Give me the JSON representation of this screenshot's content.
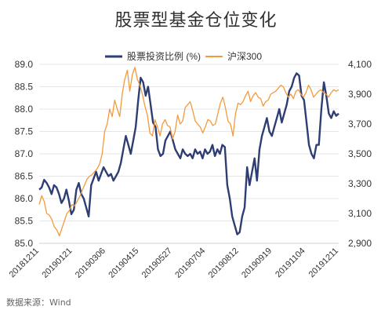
{
  "chart_data": {
    "type": "line",
    "title": "股票型基金仓位变化",
    "source": "数据来源：Wind",
    "x_ticks": [
      "20181211",
      "20190121",
      "20190306",
      "20190415",
      "20190527",
      "20190704",
      "20190812",
      "20190919",
      "20191104",
      "20191211"
    ],
    "y_left": {
      "min": 85.0,
      "max": 89.0,
      "ticks": [
        "85.0",
        "85.5",
        "86.0",
        "86.5",
        "87.0",
        "87.5",
        "88.0",
        "88.5",
        "89.0"
      ]
    },
    "y_right": {
      "min": 2900,
      "max": 4100,
      "ticks": [
        "2,900",
        "3,100",
        "3,300",
        "3,500",
        "3,700",
        "3,900",
        "4,100"
      ]
    },
    "series": [
      {
        "name": "股票投资比例 (%)",
        "axis": "left",
        "color": "#2e3e73",
        "values": [
          86.2,
          86.25,
          86.42,
          86.35,
          86.25,
          86.1,
          86.3,
          86.25,
          86.1,
          85.9,
          86.0,
          86.2,
          85.95,
          85.65,
          85.75,
          86.2,
          86.35,
          86.1,
          86.0,
          85.8,
          85.6,
          86.3,
          86.45,
          86.6,
          86.4,
          86.55,
          86.7,
          86.6,
          86.5,
          86.55,
          86.4,
          86.5,
          86.6,
          86.8,
          87.1,
          87.4,
          87.2,
          87.0,
          87.3,
          87.6,
          88.2,
          88.7,
          88.6,
          88.3,
          88.5,
          88.1,
          87.7,
          87.6,
          87.1,
          86.95,
          87.0,
          87.3,
          87.4,
          87.5,
          87.3,
          87.1,
          87.0,
          86.9,
          87.1,
          87.0,
          86.95,
          87.0,
          86.9,
          87.1,
          87.0,
          87.05,
          86.9,
          87.1,
          87.0,
          87.05,
          87.2,
          86.95,
          87.1,
          87.0,
          87.2,
          87.15,
          86.3,
          86.0,
          85.6,
          85.4,
          85.2,
          85.25,
          85.6,
          85.8,
          86.7,
          86.3,
          86.6,
          86.9,
          86.4,
          87.1,
          87.4,
          87.6,
          87.8,
          87.5,
          87.4,
          87.6,
          87.8,
          88.0,
          87.7,
          87.9,
          88.1,
          88.4,
          88.5,
          88.7,
          88.8,
          88.75,
          88.3,
          88.2,
          87.7,
          87.2,
          87.0,
          86.9,
          87.2,
          87.2,
          88.0,
          88.6,
          88.3,
          87.9,
          87.8,
          87.95,
          87.85,
          87.9
        ]
      },
      {
        "name": "沪深300",
        "axis": "right",
        "color": "#f39a3c",
        "values": [
          3160,
          3220,
          3180,
          3100,
          3090,
          3060,
          3010,
          2990,
          2950,
          3000,
          3050,
          3100,
          3120,
          3160,
          3150,
          3180,
          3210,
          3250,
          3290,
          3330,
          3350,
          3360,
          3380,
          3400,
          3430,
          3500,
          3650,
          3700,
          3800,
          3750,
          3860,
          3800,
          3750,
          3900,
          4000,
          4060,
          3920,
          4030,
          4080,
          4000,
          3960,
          3900,
          3820,
          3760,
          3640,
          3620,
          3730,
          3680,
          3620,
          3700,
          3730,
          3690,
          3680,
          3600,
          3650,
          3760,
          3700,
          3720,
          3810,
          3830,
          3850,
          3790,
          3720,
          3700,
          3680,
          3640,
          3680,
          3730,
          3720,
          3690,
          3700,
          3770,
          3840,
          3880,
          3810,
          3720,
          3700,
          3620,
          3770,
          3840,
          3830,
          3850,
          3890,
          3920,
          3850,
          3890,
          3910,
          3880,
          3870,
          3820,
          3850,
          3860,
          3900,
          3910,
          3920,
          3940,
          3960,
          3950,
          3910,
          3880,
          3900,
          3870,
          3920,
          3930,
          3900,
          3880,
          3910,
          3960,
          3930,
          3880,
          3900,
          3920,
          3930,
          3910,
          3900,
          3880,
          3910,
          3930,
          3920,
          3930
        ]
      }
    ],
    "legend_position": "top-center"
  }
}
